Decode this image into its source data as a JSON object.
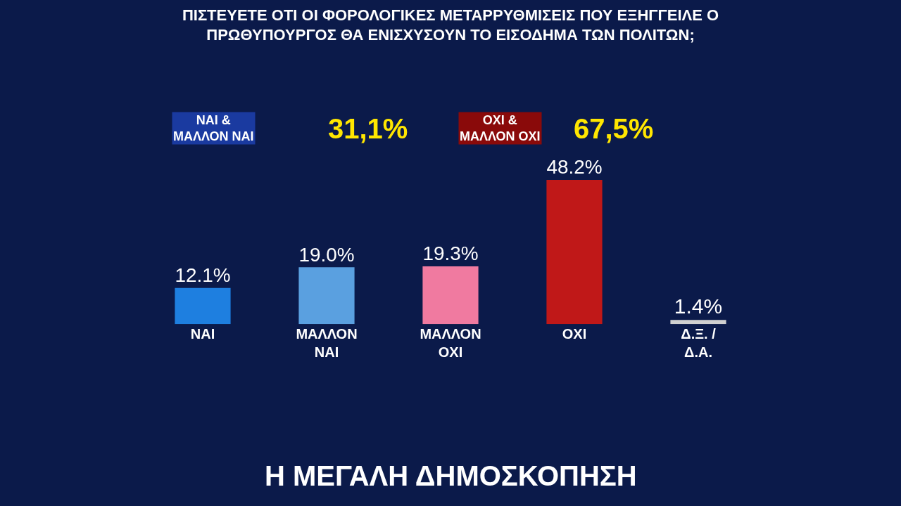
{
  "chart_data": {
    "type": "bar",
    "title": "ΠΙΣΤΕΥΕΤΕ ΟΤΙ ΟΙ ΦΟΡΟΛΟΓΙΚΕΣ ΜΕΤΑΡΡΥΘΜΙΣΕΙΣ ΠΟΥ ΕΞΗΓΓΕΙΛΕ Ο ΠΡΩΘΥΠΟΥΡΓΟΣ ΘΑ ΕΝΙΣΧΥΣΟΥΝ ΤΟ ΕΙΣΟΔΗΜΑ ΤΩΝ ΠΟΛΙΤΩΝ;",
    "categories": [
      "ΝΑΙ",
      "ΜΑΛΛΟΝ ΝΑΙ",
      "ΜΑΛΛΟΝ ΟΧΙ",
      "ΟΧΙ",
      "Δ.Ξ. / Δ.Α."
    ],
    "values": [
      12.1,
      19.0,
      19.3,
      48.2,
      1.4
    ],
    "value_labels": [
      "12.1%",
      "19.0%",
      "19.3%",
      "48.2%",
      "1.4%"
    ],
    "colors": [
      "#1e7fe0",
      "#5aa0e0",
      "#f07aa0",
      "#c01818",
      "#d0d0d0"
    ],
    "annotations": [
      "ΝΑΙ & ΜΑΛΛΟΝ ΝΑΙ",
      "31,1%",
      "ΟΧΙ & ΜΑΛΛΟΝ ΟΧΙ",
      "67,5%",
      "Η ΜΕΓΑΛΗ ΔΗΜΟΣΚΟΠΗΣΗ"
    ],
    "grid": false,
    "legend": false
  }
}
